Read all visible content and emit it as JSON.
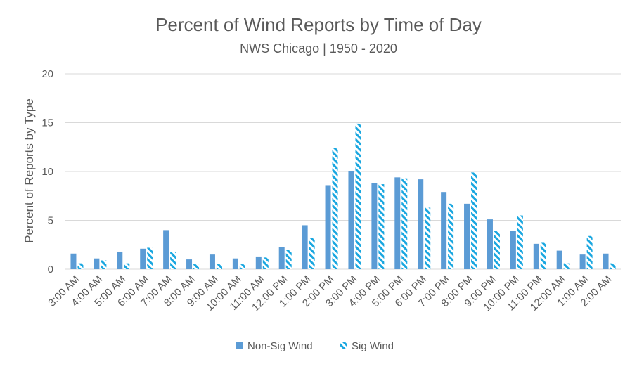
{
  "chart_data": {
    "type": "bar",
    "title": "Percent of Wind Reports by Time of Day",
    "subtitle": "NWS Chicago | 1950 - 2020",
    "xlabel": "",
    "ylabel": "Percent of Reports by Type",
    "ylim": [
      0,
      20
    ],
    "yticks": [
      "0",
      "5",
      "10",
      "15",
      "20"
    ],
    "grid": true,
    "legend_position": "bottom",
    "categories": [
      "3:00 AM",
      "4:00 AM",
      "5:00 AM",
      "6:00 AM",
      "7:00 AM",
      "8:00 AM",
      "9:00 AM",
      "10:00 AM",
      "11:00 AM",
      "12:00 PM",
      "1:00 PM",
      "2:00 PM",
      "3:00 PM",
      "4:00 PM",
      "5:00 PM",
      "6:00 PM",
      "7:00 PM",
      "8:00 PM",
      "9:00 PM",
      "10:00 PM",
      "11:00 PM",
      "12:00 AM",
      "1:00 AM",
      "2:00 AM"
    ],
    "series": [
      {
        "name": "Non-Sig Wind",
        "color": "#5b9bd5",
        "pattern": "solid",
        "values": [
          1.6,
          1.1,
          1.8,
          2.1,
          4.0,
          1.0,
          1.5,
          1.1,
          1.3,
          2.3,
          4.5,
          8.6,
          10.0,
          8.8,
          9.4,
          9.2,
          7.9,
          6.7,
          5.1,
          3.9,
          2.6,
          1.9,
          1.5,
          1.6
        ]
      },
      {
        "name": "Sig Wind",
        "color": "#1aa7e0",
        "pattern": "hatched",
        "values": [
          0.6,
          0.9,
          0.6,
          2.2,
          1.8,
          0.5,
          0.5,
          0.5,
          1.2,
          2.0,
          3.2,
          12.4,
          14.9,
          8.7,
          9.3,
          6.3,
          6.7,
          9.9,
          3.9,
          5.5,
          2.7,
          0.6,
          3.4,
          0.6
        ]
      }
    ]
  }
}
